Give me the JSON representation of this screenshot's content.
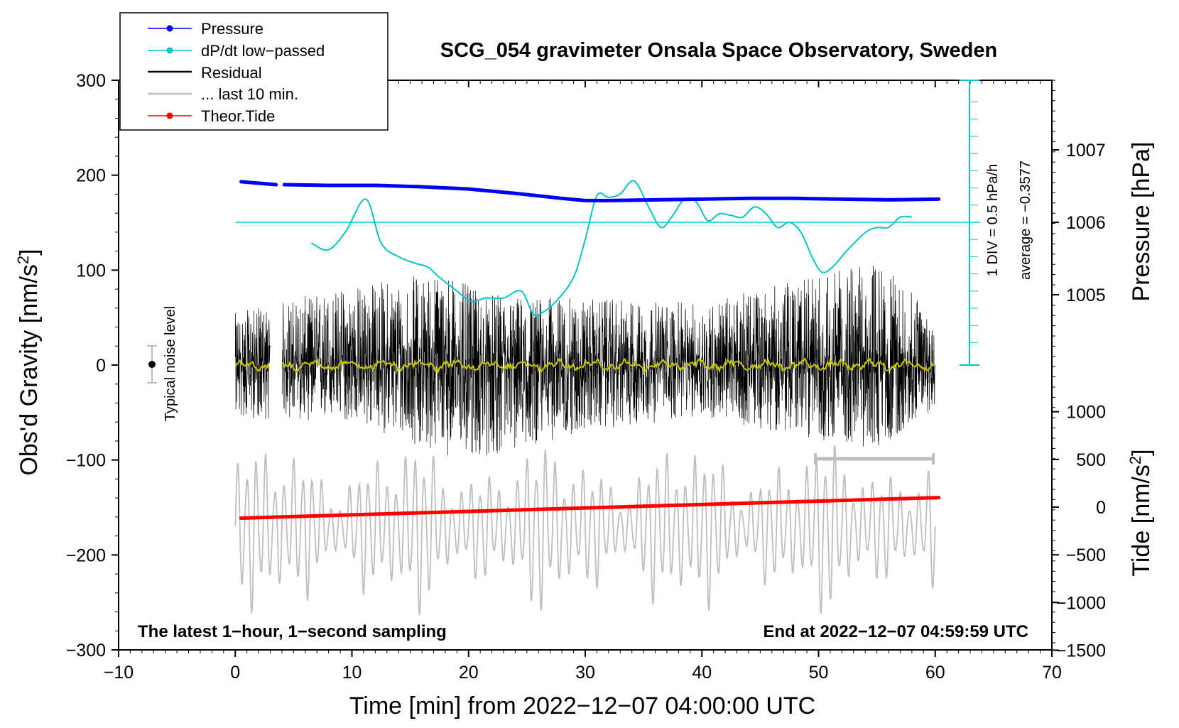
{
  "chart_data": {
    "type": "line",
    "title": "SCG_054 gravimeter Onsala Space Observatory, Sweden",
    "xlabel": "Time [min] from 2022−12−07 04:00:00 UTC",
    "ylabel_left": "Obs'd Gravity [nm/s",
    "ylabel_left_sup": "2",
    "ylabel_left_close": "]",
    "ylabel_right_pressure": "Pressure [hPa]",
    "ylabel_right_tide": "Tide [nm/s",
    "ylabel_right_tide_sup": "2",
    "ylabel_right_tide_close": "]",
    "xlim": [
      -10,
      70
    ],
    "ylim": [
      -300,
      300
    ],
    "x_ticks": [
      -10,
      0,
      10,
      20,
      30,
      40,
      50,
      60,
      70
    ],
    "x_tick_labels": [
      "−10",
      "0",
      "10",
      "20",
      "30",
      "40",
      "50",
      "60",
      "70"
    ],
    "y_ticks": [
      300,
      200,
      100,
      0,
      -100,
      -200,
      -300
    ],
    "y_tick_labels": [
      "300",
      "200",
      "100",
      "0",
      "−100",
      "−200",
      "−300"
    ],
    "pressure_axis": {
      "ticks": [
        1007,
        1006,
        1005
      ],
      "tick_labels": [
        "1007",
        "1006",
        "1005"
      ]
    },
    "tide_axis": {
      "ticks": [
        1000,
        500,
        0,
        -500,
        -1000,
        -1500
      ],
      "tick_labels": [
        "1000",
        "500",
        "0",
        "−500",
        "−1000",
        "−1500"
      ]
    },
    "legend": [
      {
        "label": "Pressure",
        "color": "#0000ff",
        "marker": true
      },
      {
        "label": "dP/dt low−passed",
        "color": "#00c8c8",
        "marker": true
      },
      {
        "label": "Residual",
        "color": "#000000",
        "marker": false
      },
      {
        "label": "... last 10 min.",
        "color": "#bebebe",
        "marker": false
      },
      {
        "label": "Theor.Tide",
        "color": "#ff0000",
        "marker": true
      }
    ],
    "annotations": {
      "noise_label": "Typical noise level",
      "dpdt_scale": "1 DIV = 0.5 hPa/h",
      "dpdt_average": "average = −0.3577",
      "bottom_left": "The latest 1−hour, 1−second sampling",
      "bottom_right": "End at 2022−12−07 04:59:59 UTC"
    },
    "colors": {
      "pressure": "#0000ff",
      "dpdt": "#00c8c8",
      "residual": "#000000",
      "residual_smooth": "#c8c800",
      "last10": "#bebebe",
      "tide": "#ff0000"
    },
    "series": [
      {
        "name": "Pressure",
        "units": "hPa",
        "x": [
          0.5,
          3.5,
          4.2,
          8,
          12,
          16,
          20,
          24,
          28,
          30,
          32,
          36,
          40,
          44,
          48,
          52,
          56,
          60.3
        ],
        "values": [
          1006.56,
          1006.52,
          1006.52,
          1006.51,
          1006.51,
          1006.49,
          1006.46,
          1006.4,
          1006.33,
          1006.3,
          1006.3,
          1006.31,
          1006.32,
          1006.33,
          1006.33,
          1006.32,
          1006.31,
          1006.32
        ],
        "gaps_after": [
          3.5
        ]
      },
      {
        "name": "dP/dt low-passed",
        "units": "div (0.5 hPa/h)",
        "x": [
          6.5,
          8,
          9.5,
          11.2,
          12.5,
          14,
          15.5,
          16.5,
          17.5,
          19,
          20.2,
          21.5,
          23,
          24.5,
          25.5,
          26.2,
          27.5,
          29,
          30,
          31,
          32,
          33,
          34.2,
          35.5,
          36.5,
          37.5,
          38.5,
          39.5,
          40.5,
          41.5,
          42.5,
          43.5,
          44.5,
          45.5,
          46.5,
          47.5,
          48.5,
          49.5,
          50.3,
          51.2,
          52.5,
          54,
          55,
          56,
          57,
          58
        ],
        "values": [
          -1.2,
          -1.6,
          -0.5,
          1.35,
          -1.2,
          -2.0,
          -2.4,
          -2.6,
          -3.2,
          -4.0,
          -4.6,
          -4.4,
          -4.4,
          -4.0,
          -5.3,
          -5.3,
          -4.6,
          -3.2,
          -1.0,
          1.55,
          1.45,
          1.65,
          2.4,
          0.8,
          -0.3,
          0.4,
          1.35,
          1.2,
          0.1,
          0.5,
          0.4,
          0.3,
          0.9,
          0.5,
          -0.3,
          0.0,
          -0.6,
          -2.1,
          -2.9,
          -2.6,
          -1.6,
          -0.6,
          -0.3,
          -0.3,
          0.3,
          0.3
        ]
      },
      {
        "name": "Residual",
        "units": "nm/s^2",
        "x_range": [
          0,
          60
        ],
        "gap": [
          3.0,
          4.0
        ],
        "envelope": [
          {
            "x": 0,
            "max": 55,
            "min": -57
          },
          {
            "x": 10,
            "max": 85,
            "min": -60
          },
          {
            "x": 18,
            "max": 100,
            "min": -95
          },
          {
            "x": 21,
            "max": 75,
            "min": -100
          },
          {
            "x": 30,
            "max": 70,
            "min": -70
          },
          {
            "x": 40,
            "max": 65,
            "min": -55
          },
          {
            "x": 55,
            "max": 110,
            "min": -90
          },
          {
            "x": 60,
            "max": 55,
            "min": -45
          }
        ]
      },
      {
        "name": "... last 10 min.",
        "units": "nm/s^2 (left axis)",
        "x_range": [
          0,
          60
        ],
        "center": -170,
        "amplitude_range": [
          25,
          100
        ],
        "period_min": 0.8
      },
      {
        "name": "Theor.Tide",
        "units": "nm/s^2 (tide axis)",
        "x": [
          0.5,
          60.3
        ],
        "values": [
          -115,
          100
        ]
      }
    ]
  }
}
